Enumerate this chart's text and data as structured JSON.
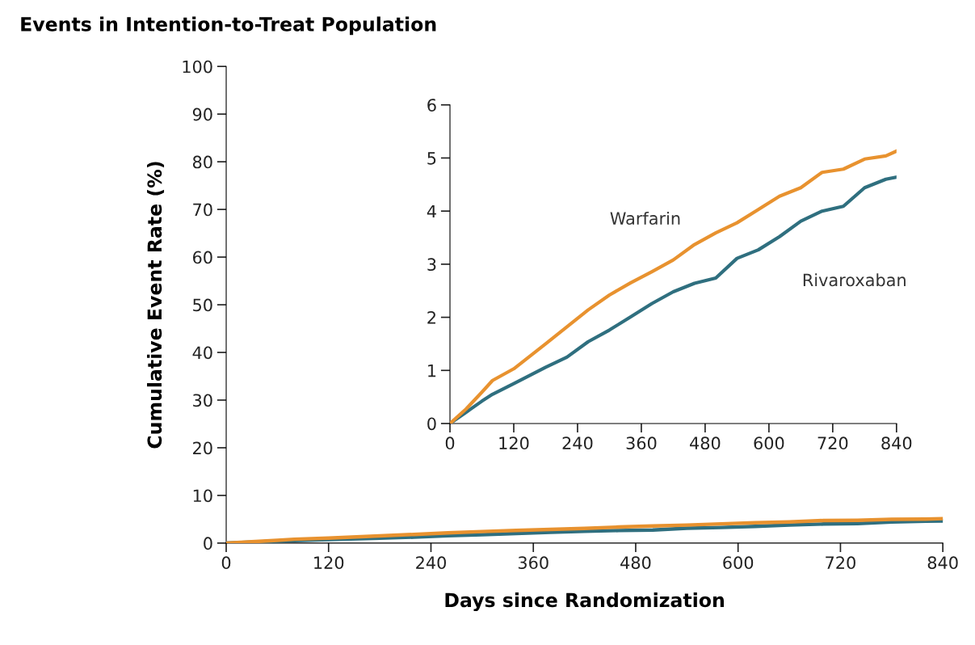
{
  "chart_data": [
    {
      "type": "line",
      "title": "Events in Intention-to-Treat Population",
      "xlabel": "Days since Randomization",
      "ylabel": "Cumulative Event Rate (%)",
      "xlim": [
        0,
        840
      ],
      "xticks": [
        0,
        120,
        240,
        360,
        480,
        600,
        720,
        840
      ],
      "ylim": [
        0,
        100
      ],
      "yticks": [
        0,
        10,
        20,
        30,
        40,
        50,
        60,
        70,
        80,
        90,
        100
      ],
      "grid": false,
      "legend": false,
      "x": [
        0,
        30,
        60,
        80,
        120,
        180,
        220,
        260,
        300,
        340,
        380,
        420,
        460,
        500,
        540,
        580,
        620,
        660,
        700,
        740,
        780,
        820,
        840
      ],
      "series": [
        {
          "color": "#e8922f",
          "values": [
            0,
            0.27,
            0.59,
            0.81,
            1.03,
            1.5,
            1.82,
            2.14,
            2.42,
            2.65,
            2.86,
            3.08,
            3.37,
            3.59,
            3.78,
            4.03,
            4.28,
            4.44,
            4.73,
            4.79,
            4.98,
            5.04,
            5.13
          ]
        },
        {
          "color": "#2f6f7f",
          "values": [
            0,
            0.21,
            0.42,
            0.55,
            0.75,
            1.06,
            1.25,
            1.54,
            1.76,
            2.01,
            2.26,
            2.48,
            2.64,
            2.74,
            3.11,
            3.27,
            3.52,
            3.81,
            4.0,
            4.09,
            4.44,
            4.6,
            4.64
          ]
        }
      ]
    },
    {
      "type": "line",
      "xlim": [
        0,
        840
      ],
      "xticks": [
        0,
        120,
        240,
        360,
        480,
        600,
        720,
        840
      ],
      "ylim": [
        0,
        6
      ],
      "yticks": [
        0,
        1,
        2,
        3,
        4,
        5,
        6
      ],
      "grid": false,
      "legend": false,
      "x": [
        0,
        30,
        60,
        80,
        120,
        180,
        220,
        260,
        300,
        340,
        380,
        420,
        460,
        500,
        540,
        580,
        620,
        660,
        700,
        740,
        780,
        820,
        840
      ],
      "series": [
        {
          "name": "Warfarin",
          "color": "#e8922f",
          "values": [
            0,
            0.27,
            0.59,
            0.81,
            1.03,
            1.5,
            1.82,
            2.14,
            2.42,
            2.65,
            2.86,
            3.08,
            3.37,
            3.59,
            3.78,
            4.03,
            4.28,
            4.44,
            4.73,
            4.79,
            4.98,
            5.04,
            5.13
          ]
        },
        {
          "name": "Rivaroxaban",
          "color": "#2f6f7f",
          "values": [
            0,
            0.21,
            0.42,
            0.55,
            0.75,
            1.06,
            1.25,
            1.54,
            1.76,
            2.01,
            2.26,
            2.48,
            2.64,
            2.74,
            3.11,
            3.27,
            3.52,
            3.81,
            4.0,
            4.09,
            4.44,
            4.6,
            4.64
          ]
        }
      ]
    }
  ]
}
